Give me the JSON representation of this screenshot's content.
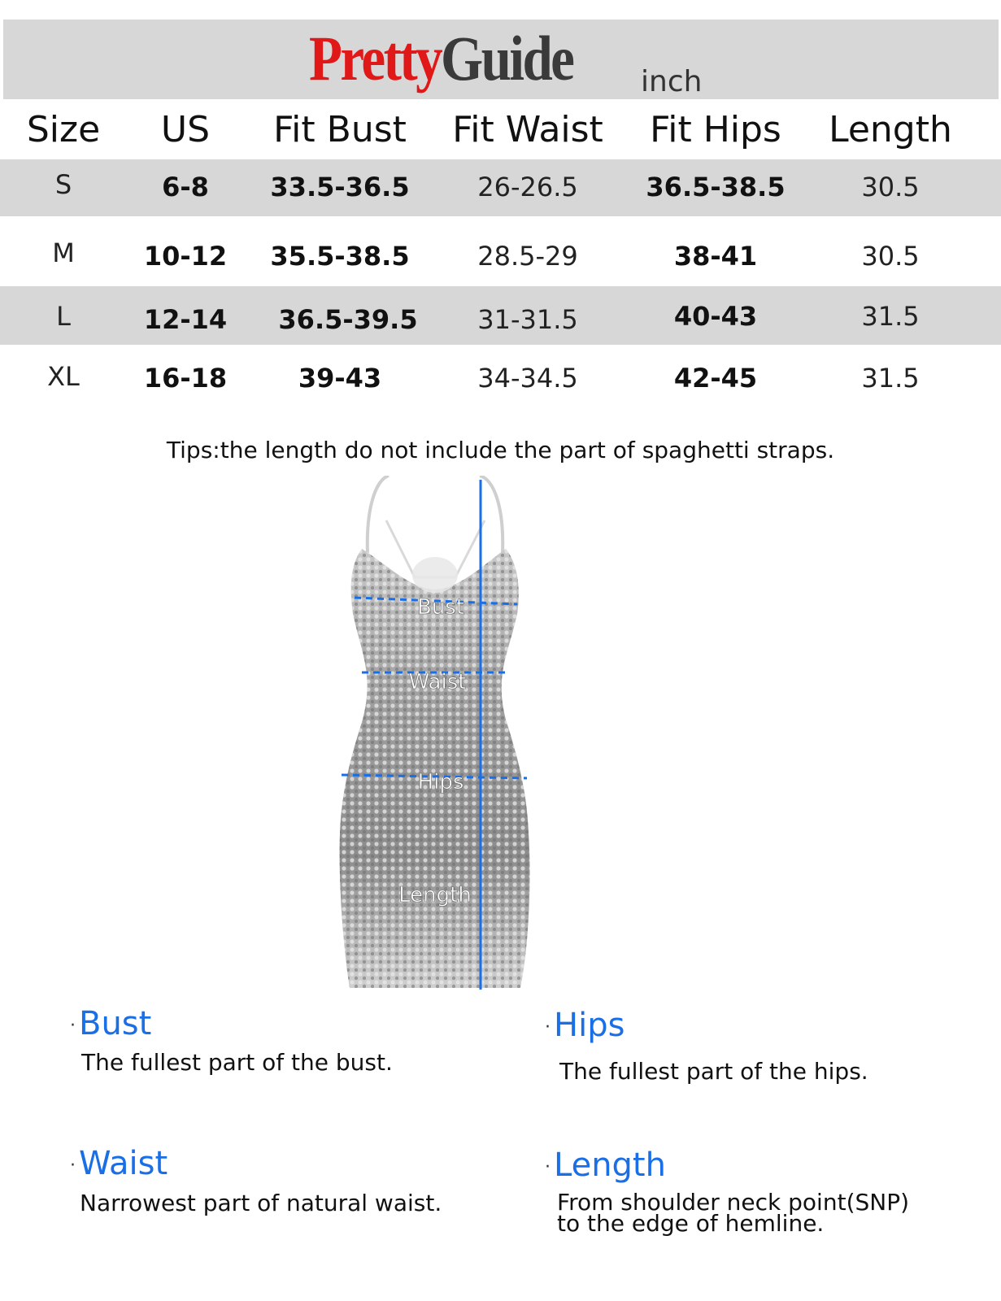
{
  "header": {
    "brand_part1": "Pretty",
    "brand_part2": "G",
    "brand_part3": "uide",
    "unit": "inch"
  },
  "table": {
    "columns": [
      "Size",
      "US",
      "Fit Bust",
      "Fit Waist",
      "Fit Hips",
      "Length"
    ],
    "rows": [
      [
        "S",
        "6-8",
        "33.5-36.5",
        "26-26.5",
        "36.5-38.5",
        "30.5"
      ],
      [
        "M",
        "10-12",
        "35.5-38.5",
        "28.5-29",
        "38-41",
        "30.5"
      ],
      [
        "L",
        "12-14",
        "36.5-39.5",
        "31-31.5",
        "40-43",
        "31.5"
      ],
      [
        "XL",
        "16-18",
        "39-43",
        "34-34.5",
        "42-45",
        "31.5"
      ]
    ]
  },
  "tips": "Tips:the length do not include the part of spaghetti straps.",
  "diagram": {
    "labels": [
      "Bust",
      "Waist",
      "Hips",
      "Length"
    ],
    "line_color": "#1a6fe6",
    "dress_color": "#b9b9b9"
  },
  "definitions": [
    {
      "title": "Bust",
      "text": "The fullest part of the bust."
    },
    {
      "title": "Hips",
      "text": "The fullest part of the hips."
    },
    {
      "title": "Waist",
      "text": "Narrowest part of natural waist."
    },
    {
      "title": "Length",
      "text_line1": "From shoulder neck point(SNP)",
      "text_line2": "to the edge of hemline."
    }
  ]
}
